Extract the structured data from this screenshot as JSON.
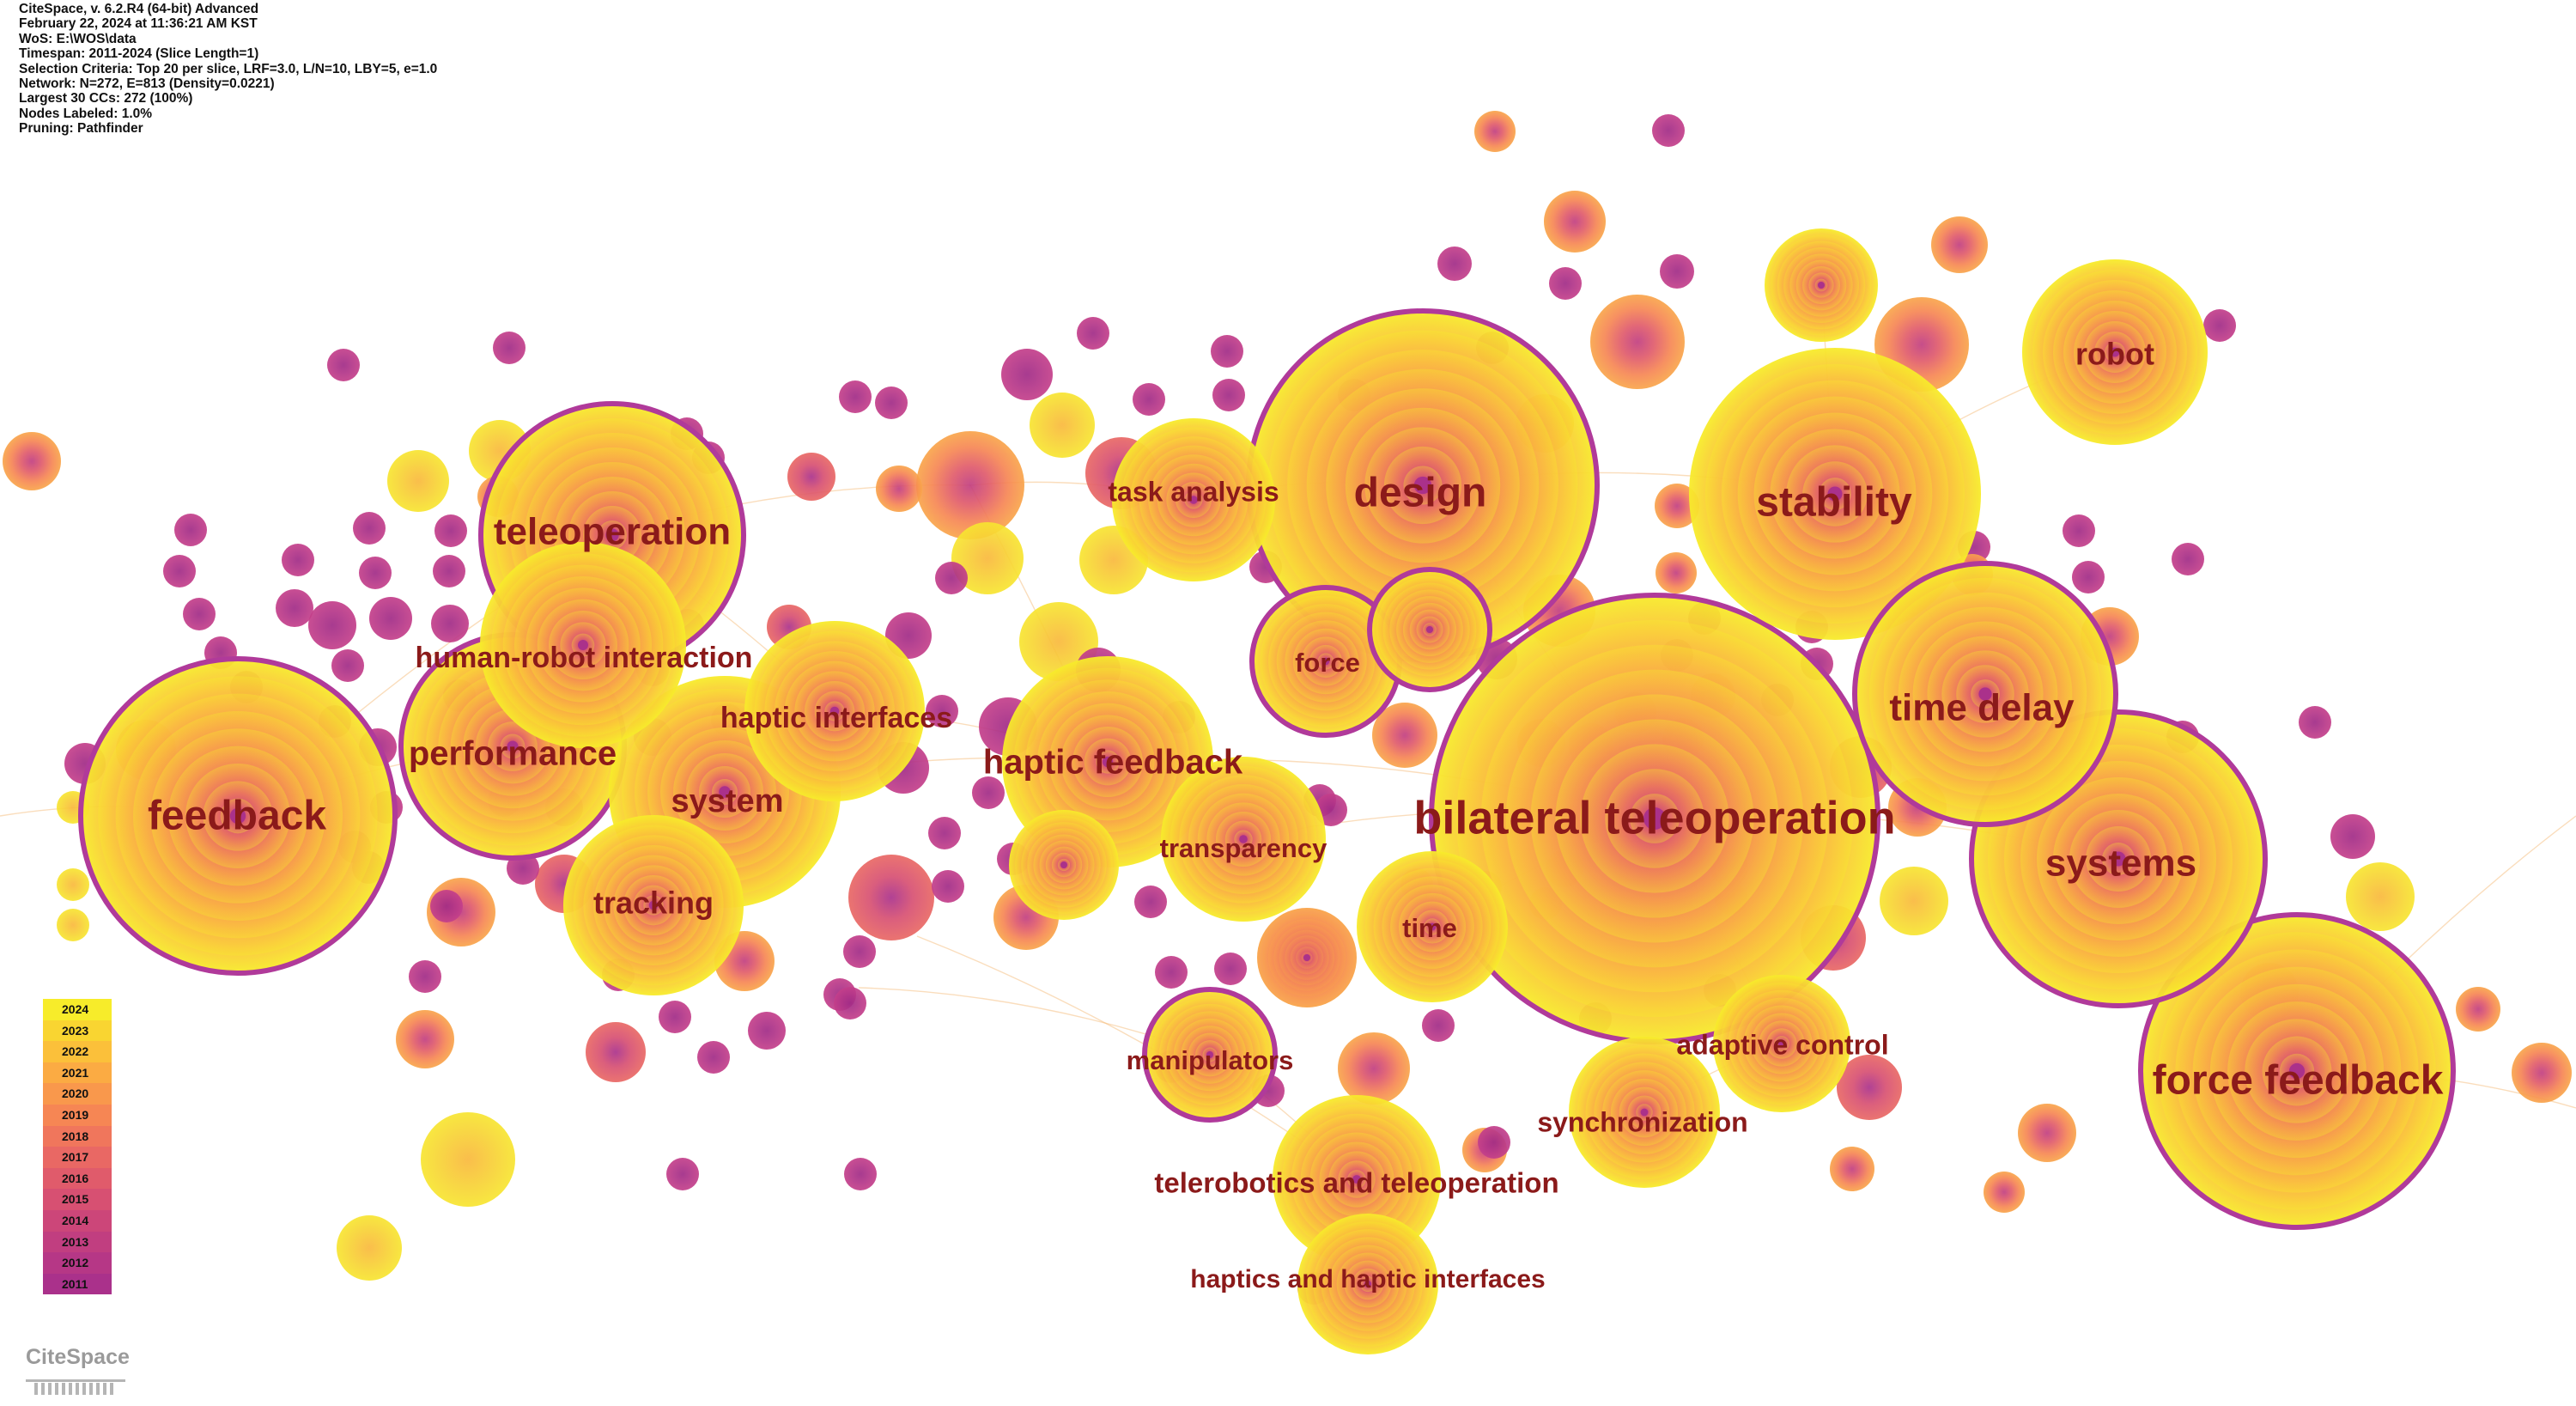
{
  "metadata_lines": [
    "CiteSpace, v. 6.2.R4 (64-bit) Advanced",
    "February 22, 2024 at 11:36:21 AM KST",
    "WoS: E:\\WOS\\data",
    "Timespan: 2011-2024 (Slice Length=1)",
    "Selection Criteria: Top 20 per slice, LRF=3.0, L/N=10, LBY=5, e=1.0",
    "Network: N=272, E=813 (Density=0.0221)",
    "Largest 30 CCs: 272 (100%)",
    "Nodes Labeled: 1.0%",
    "Pruning: Pathfinder"
  ],
  "legend": {
    "years": [
      "2024",
      "2023",
      "2022",
      "2021",
      "2020",
      "2019",
      "2018",
      "2017",
      "2016",
      "2015",
      "2014",
      "2013",
      "2012",
      "2011"
    ],
    "colors": [
      "#f7ec2a",
      "#f9d531",
      "#fbc03a",
      "#fbab43",
      "#f9984c",
      "#f68654",
      "#f0765c",
      "#e96864",
      "#e05b6b",
      "#d75072",
      "#cc4679",
      "#c13e80",
      "#b63786",
      "#aa318b"
    ]
  },
  "labels": [
    {
      "text": "bilateral teleoperation",
      "size": "xl"
    },
    {
      "text": "force feedback",
      "size": "lg"
    },
    {
      "text": "design",
      "size": "lg"
    },
    {
      "text": "stability",
      "size": "lg"
    },
    {
      "text": "feedback",
      "size": "lg"
    },
    {
      "text": "teleoperation",
      "size": "lg"
    },
    {
      "text": "systems",
      "size": "lg"
    },
    {
      "text": "time delay",
      "size": "lg"
    },
    {
      "text": "performance",
      "size": "lg"
    },
    {
      "text": "haptic feedback",
      "size": "md"
    },
    {
      "text": "robot",
      "size": "md"
    },
    {
      "text": "system",
      "size": "md"
    },
    {
      "text": "tracking",
      "size": "md"
    },
    {
      "text": "human-robot interaction",
      "size": "md"
    },
    {
      "text": "haptic interfaces",
      "size": "md"
    },
    {
      "text": "task analysis",
      "size": "sm"
    },
    {
      "text": "force",
      "size": "sm"
    },
    {
      "text": "transparency",
      "size": "sm"
    },
    {
      "text": "time",
      "size": "sm"
    },
    {
      "text": "manipulators",
      "size": "sm"
    },
    {
      "text": "adaptive control",
      "size": "sm"
    },
    {
      "text": "synchronization",
      "size": "sm"
    },
    {
      "text": "telerobotics and teleoperation",
      "size": "sm"
    },
    {
      "text": "haptics and haptic interfaces",
      "size": "sm"
    }
  ],
  "logo_text": "CiteSpace",
  "colors": {
    "label": "#8b1a1a",
    "ring": "#b03a9a",
    "edge": "#f4b36a"
  }
}
